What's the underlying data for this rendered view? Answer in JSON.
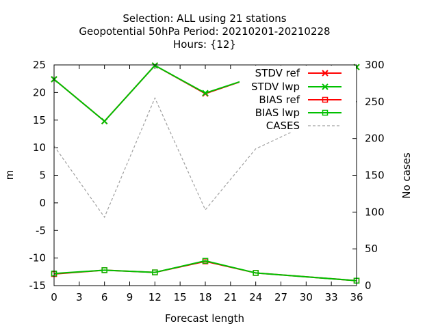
{
  "chart_data": {
    "type": "line",
    "title": [
      "Selection: ALL using    21 stations",
      "Geopotential 50hPa   Period: 20210201-20210228",
      "Hours: {12}"
    ],
    "xlabel": "Forecast length",
    "ylabel": "m",
    "y2label": "No cases",
    "xlim": [
      0,
      36
    ],
    "ylim": [
      -15,
      25
    ],
    "y2lim": [
      0,
      300
    ],
    "xticks": [
      "0",
      "3",
      "6",
      "9",
      "12",
      "15",
      "18",
      "21",
      "24",
      "27",
      "30",
      "33",
      "36"
    ],
    "yticks": [
      "-15",
      "-10",
      "-5",
      "0",
      "5",
      "10",
      "15",
      "20",
      "25"
    ],
    "y2ticks": [
      "0",
      "50",
      "100",
      "150",
      "200",
      "250",
      "300"
    ],
    "x": [
      0,
      6,
      12,
      18,
      24,
      36
    ],
    "legend_position": "top-right",
    "series": [
      {
        "name": "STDV ref",
        "axis": "y1",
        "color": "#ff0000",
        "marker": "x",
        "dash": false,
        "values": [
          22.4,
          14.8,
          24.9,
          19.8,
          22.9,
          24.6
        ]
      },
      {
        "name": "STDV lwp",
        "axis": "y1",
        "color": "#00c000",
        "marker": "x",
        "dash": false,
        "values": [
          22.4,
          14.8,
          24.9,
          19.9,
          22.9,
          24.6
        ]
      },
      {
        "name": "BIAS ref",
        "axis": "y1",
        "color": "#ff0000",
        "marker": "square",
        "dash": false,
        "values": [
          -12.9,
          -12.2,
          -12.6,
          -10.6,
          -12.7,
          -14.1
        ]
      },
      {
        "name": "BIAS lwp",
        "axis": "y1",
        "color": "#00c000",
        "marker": "square",
        "dash": false,
        "values": [
          -12.8,
          -12.2,
          -12.6,
          -10.5,
          -12.7,
          -14.1
        ]
      },
      {
        "name": "CASES",
        "axis": "y2",
        "color": "#a0a0a0",
        "marker": "none",
        "dash": true,
        "values": [
          190,
          93,
          255,
          103,
          186,
          250
        ]
      }
    ]
  }
}
